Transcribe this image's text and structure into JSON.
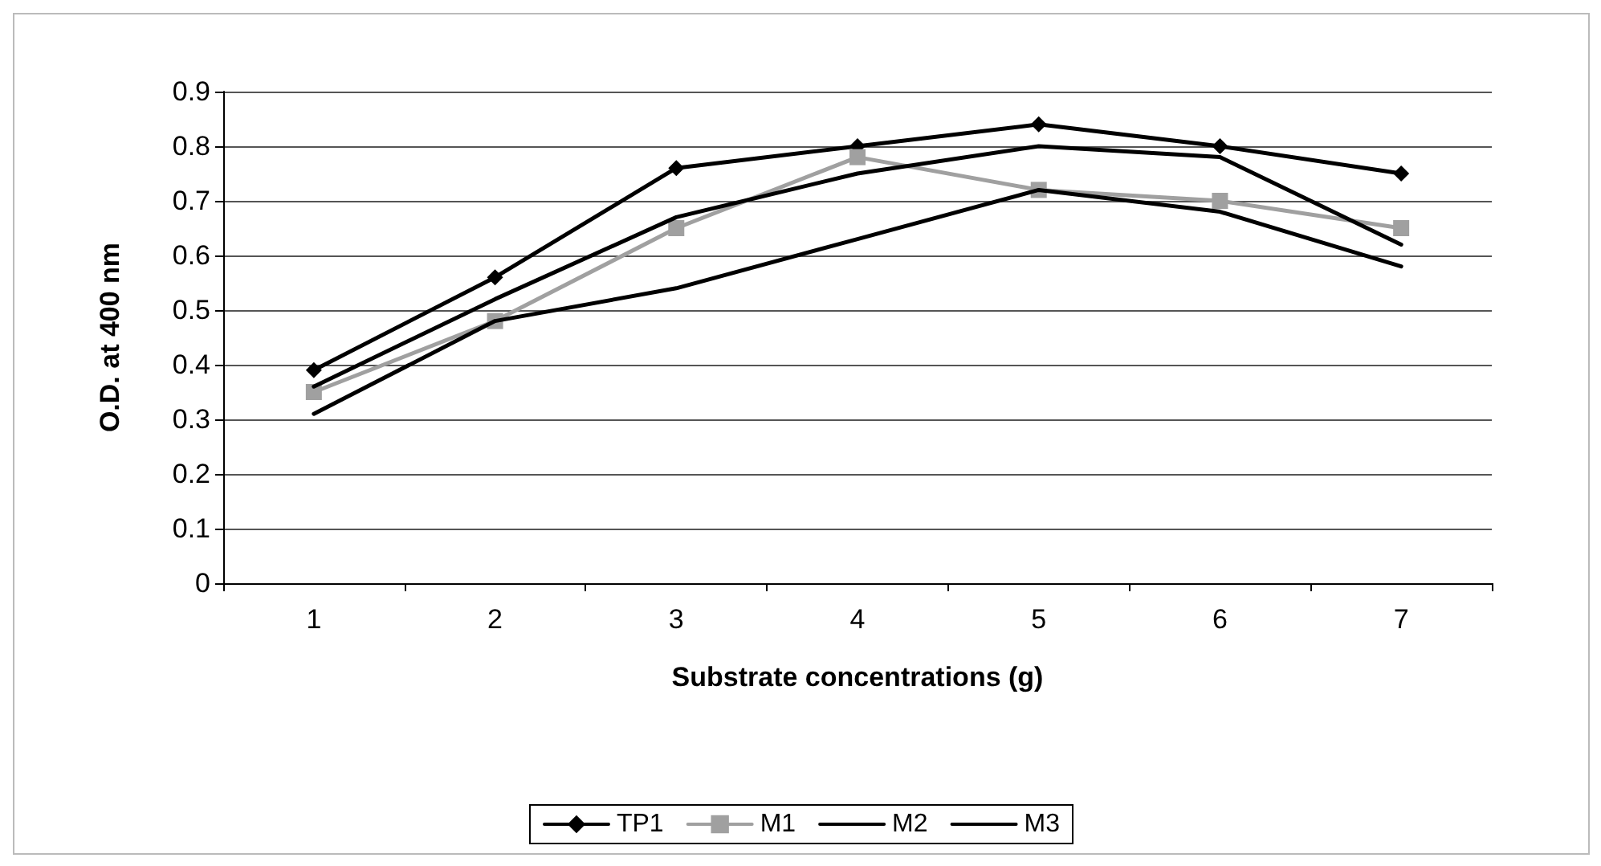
{
  "chart_data": {
    "type": "line",
    "xlabel": "Substrate concentrations (g)",
    "ylabel": "O.D. at 400 nm",
    "categories": [
      "1",
      "2",
      "3",
      "4",
      "5",
      "6",
      "7"
    ],
    "series": [
      {
        "name": "TP1",
        "color": "#000000",
        "marker": "diamond",
        "values": [
          0.39,
          0.56,
          0.76,
          0.8,
          0.84,
          0.8,
          0.75
        ]
      },
      {
        "name": "M1",
        "color": "#a0a0a0",
        "marker": "square",
        "values": [
          0.35,
          0.48,
          0.65,
          0.78,
          0.72,
          0.7,
          0.65
        ]
      },
      {
        "name": "M2",
        "color": "#000000",
        "marker": "none",
        "values": [
          0.36,
          0.52,
          0.67,
          0.75,
          0.8,
          0.78,
          0.62
        ]
      },
      {
        "name": "M3",
        "color": "#000000",
        "marker": "none",
        "values": [
          0.31,
          0.48,
          0.54,
          0.63,
          0.72,
          0.68,
          0.58
        ]
      }
    ],
    "ylim": [
      0,
      0.9
    ],
    "yticks": [
      0,
      0.1,
      0.2,
      0.3,
      0.4,
      0.5,
      0.6,
      0.7,
      0.8,
      0.9
    ],
    "grid": "y",
    "legend": "bottom",
    "line_style": "solid"
  }
}
